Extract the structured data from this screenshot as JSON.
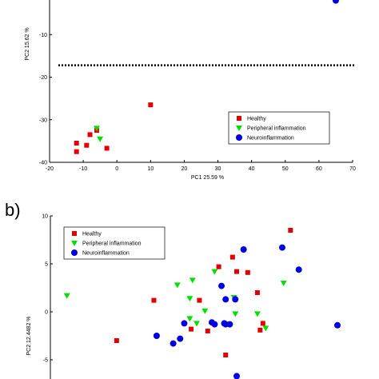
{
  "panel_b_label": "b)",
  "chart_data": [
    {
      "type": "scatter",
      "panel": "a",
      "xlabel": "PC1 25.59 %",
      "ylabel": "PC2 15.62 %",
      "xlim": [
        -20,
        70
      ],
      "ylim": [
        -40,
        0
      ],
      "xticks": [
        -20,
        -10,
        0,
        10,
        20,
        30,
        40,
        50,
        60,
        70
      ],
      "yticks": [
        -40,
        -30,
        -20,
        -10
      ],
      "hline": -17.2,
      "legend_position": "lower-right",
      "series": [
        {
          "name": "Healthy",
          "marker": "square",
          "color": "#e00000",
          "x": [
            -12,
            -12,
            -9,
            -8,
            -6,
            -3,
            10
          ],
          "y": [
            -35.5,
            -37.5,
            -36,
            -33.5,
            -32.5,
            -36.7,
            -26.5
          ]
        },
        {
          "name": "Peripheral inflammation",
          "marker": "triangle-down",
          "color": "#00e000",
          "x": [
            -6,
            -5
          ],
          "y": [
            -32,
            -34.5
          ]
        },
        {
          "name": "Neuroinflammation",
          "marker": "circle",
          "color": "#0000e0",
          "x": [
            65
          ],
          "y": [
            -2
          ]
        }
      ]
    },
    {
      "type": "scatter",
      "panel": "b",
      "xlabel": "",
      "ylabel": "PC2 12.4482 %",
      "yticks": [
        -5,
        0,
        5,
        10
      ],
      "ylim": [
        -8,
        10
      ],
      "xlim": [
        -9,
        14
      ],
      "legend_position": "upper-left",
      "series": [
        {
          "name": "Healthy",
          "marker": "square",
          "color": "#e00000",
          "x": [
            8.4,
            4.2,
            3.2,
            4.5,
            5.3,
            1.8,
            6.0,
            6.4,
            1.2,
            -1.5,
            2.4,
            6.2,
            -4.2,
            3.7
          ],
          "y": [
            8.5,
            5.7,
            4.7,
            4.2,
            4.1,
            1.2,
            2.0,
            -1.2,
            -1.8,
            1.2,
            -2.0,
            -1.9,
            -3.0,
            -4.5
          ]
        },
        {
          "name": "Peripheral inflammation",
          "marker": "triangle-down",
          "color": "#00e000",
          "x": [
            -7.8,
            0.2,
            1.3,
            2.9,
            4.3,
            1.1,
            2.2,
            4.4,
            1.6,
            1.1,
            6.0,
            7.9,
            6.6
          ],
          "y": [
            1.7,
            2.8,
            3.3,
            4.2,
            1.5,
            1.4,
            0.1,
            -0.2,
            -1.2,
            -0.7,
            -0.2,
            3.0,
            -1.7
          ]
        },
        {
          "name": "Neuroinflammation",
          "marker": "circle",
          "color": "#0000e0",
          "x": [
            5.0,
            7.8,
            9.0,
            3.4,
            3.7,
            2.9,
            0.7,
            0.4,
            -0.1,
            -1.3,
            4.4,
            4.0,
            3.6,
            3.7,
            2.7,
            11.8,
            4.5
          ],
          "y": [
            6.5,
            6.7,
            4.4,
            2.7,
            1.3,
            -1.3,
            -1.2,
            -2.8,
            -3.3,
            -2.5,
            1.3,
            -1.3,
            -1.2,
            -1.3,
            -1.1,
            -1.4,
            -6.7
          ]
        }
      ]
    }
  ]
}
